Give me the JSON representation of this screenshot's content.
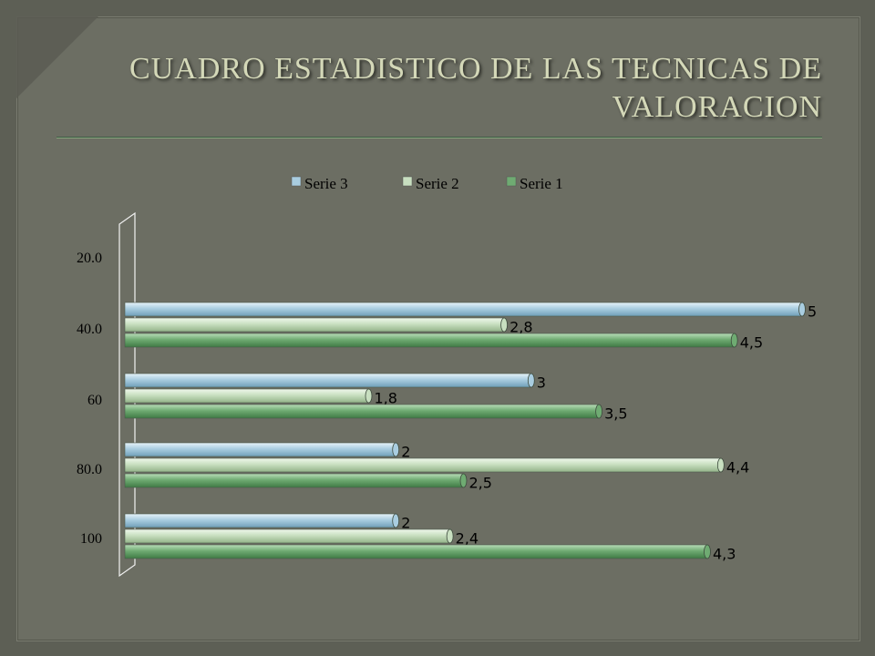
{
  "title": "CUADRO ESTADISTICO DE LAS TECNICAS DE VALORACION",
  "colors": {
    "serie3": "#a9cde0",
    "serie2": "#c8dfc0",
    "serie1": "#6fab72"
  },
  "chart_data": {
    "type": "bar",
    "orientation": "horizontal",
    "style": "3d-cylinder",
    "title": "",
    "xlabel": "",
    "ylabel": "",
    "xlim": [
      0,
      5
    ],
    "grid": false,
    "legend": "top",
    "legend_order": [
      "Serie 3",
      "Serie 2",
      "Serie 1"
    ],
    "categories": [
      "20.0",
      "40.0",
      "60",
      "80.0",
      "100"
    ],
    "series": [
      {
        "name": "Serie 3",
        "values": [
          null,
          5,
          3,
          2,
          2
        ],
        "labels": [
          "",
          "5",
          "3",
          "2",
          "2"
        ]
      },
      {
        "name": "Serie 2",
        "values": [
          null,
          2.8,
          1.8,
          4.4,
          2.4
        ],
        "labels": [
          "",
          "2,8",
          "1,8",
          "4,4",
          "2,4"
        ]
      },
      {
        "name": "Serie 1",
        "values": [
          null,
          4.5,
          3.5,
          2.5,
          4.3
        ],
        "labels": [
          "",
          "4,5",
          "3,5",
          "2,5",
          "4,3"
        ]
      }
    ]
  }
}
